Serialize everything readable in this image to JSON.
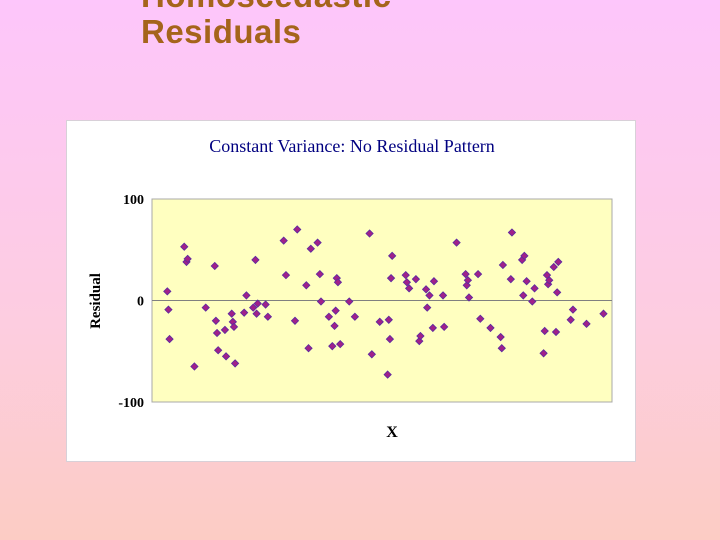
{
  "slide": {
    "title_line1": "Homoscedastic",
    "title_line2": "Residuals"
  },
  "chart_data": {
    "type": "scatter",
    "title": "Constant Variance: No Residual Pattern",
    "xlabel": "X",
    "ylabel": "Residual",
    "ylim": [
      -100,
      100
    ],
    "yticks": [
      100,
      0,
      -100
    ],
    "grid": false,
    "legend": "none",
    "plot_bg": "#ffffc0",
    "marker_fill": "#a0208a",
    "marker_stroke": "#5a2aa0",
    "title_color": "#000080",
    "points": [
      [
        1,
        9
      ],
      [
        1.1,
        -9
      ],
      [
        1.2,
        -38
      ],
      [
        2.5,
        53
      ],
      [
        2.7,
        38
      ],
      [
        2.8,
        41
      ],
      [
        3.4,
        -65
      ],
      [
        4.4,
        -7
      ],
      [
        5.2,
        34
      ],
      [
        5.3,
        -20
      ],
      [
        5.4,
        -32
      ],
      [
        5.5,
        -49
      ],
      [
        6.1,
        -29
      ],
      [
        6.2,
        -55
      ],
      [
        6.7,
        -13
      ],
      [
        6.8,
        -21
      ],
      [
        6.9,
        -26
      ],
      [
        7.0,
        -62
      ],
      [
        7.8,
        -12
      ],
      [
        8.0,
        5
      ],
      [
        8.6,
        -7
      ],
      [
        8.8,
        40
      ],
      [
        8.9,
        -13
      ],
      [
        9.0,
        -3
      ],
      [
        9.7,
        -4
      ],
      [
        9.9,
        -16
      ],
      [
        11.3,
        59
      ],
      [
        11.5,
        25
      ],
      [
        12.3,
        -20
      ],
      [
        12.5,
        70
      ],
      [
        13.3,
        15
      ],
      [
        13.5,
        -47
      ],
      [
        13.7,
        51
      ],
      [
        14.3,
        57
      ],
      [
        14.5,
        26
      ],
      [
        14.6,
        -1
      ],
      [
        15.3,
        -16
      ],
      [
        15.6,
        -45
      ],
      [
        15.8,
        -25
      ],
      [
        15.9,
        -10
      ],
      [
        16.0,
        22
      ],
      [
        16.1,
        18
      ],
      [
        16.3,
        -43
      ],
      [
        17.1,
        -1
      ],
      [
        17.6,
        -16
      ],
      [
        18.9,
        66
      ],
      [
        19.1,
        -53
      ],
      [
        19.8,
        -21
      ],
      [
        20.5,
        -73
      ],
      [
        20.6,
        -19
      ],
      [
        20.7,
        -38
      ],
      [
        20.8,
        22
      ],
      [
        20.9,
        44
      ],
      [
        22.1,
        25
      ],
      [
        22.2,
        18
      ],
      [
        22.4,
        12
      ],
      [
        23.0,
        21
      ],
      [
        23.3,
        -40
      ],
      [
        23.4,
        -35
      ],
      [
        23.9,
        11
      ],
      [
        24.0,
        -7
      ],
      [
        24.2,
        5
      ],
      [
        24.5,
        -27
      ],
      [
        24.6,
        19
      ],
      [
        25.4,
        5
      ],
      [
        25.5,
        -26
      ],
      [
        26.6,
        57
      ],
      [
        27.4,
        26
      ],
      [
        27.5,
        15
      ],
      [
        27.6,
        20
      ],
      [
        27.7,
        3
      ],
      [
        28.5,
        26
      ],
      [
        28.7,
        -18
      ],
      [
        29.6,
        -27
      ],
      [
        30.5,
        -36
      ],
      [
        30.6,
        -47
      ],
      [
        30.7,
        35
      ],
      [
        31.4,
        21
      ],
      [
        31.5,
        67
      ],
      [
        32.4,
        40
      ],
      [
        32.5,
        5
      ],
      [
        32.6,
        44
      ],
      [
        32.8,
        19
      ],
      [
        33.3,
        -1
      ],
      [
        33.5,
        12
      ],
      [
        34.3,
        -52
      ],
      [
        34.4,
        -30
      ],
      [
        34.6,
        25
      ],
      [
        34.7,
        16
      ],
      [
        34.8,
        20
      ],
      [
        35.2,
        33
      ],
      [
        35.4,
        -31
      ],
      [
        35.5,
        8
      ],
      [
        35.6,
        38
      ],
      [
        36.7,
        -19
      ],
      [
        36.9,
        -9
      ],
      [
        38.1,
        -23
      ],
      [
        39.6,
        -13
      ]
    ]
  }
}
